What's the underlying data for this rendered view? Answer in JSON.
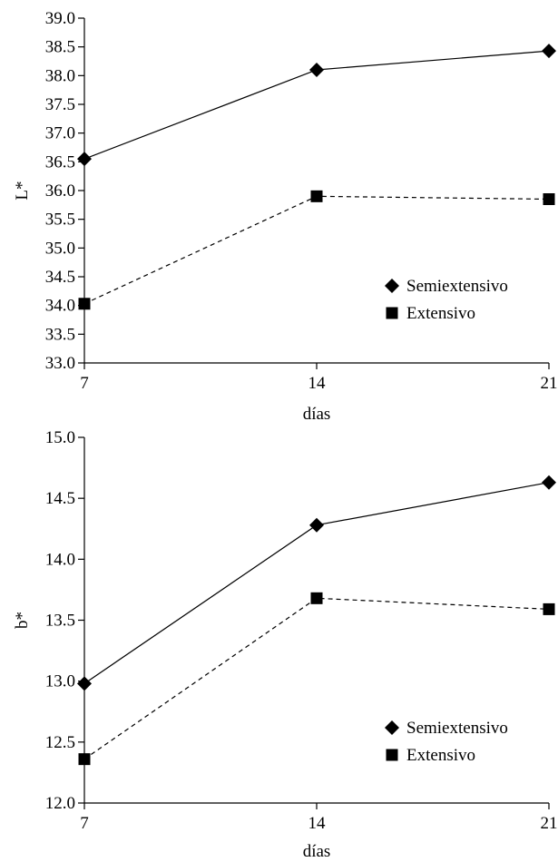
{
  "chart_data": [
    {
      "type": "line",
      "x": [
        7,
        14,
        21
      ],
      "xlabel": "días",
      "ylabel": "L*",
      "ylim": [
        33.0,
        39.0
      ],
      "ystep": 0.5,
      "yticks": [
        "33.0",
        "33.5",
        "34.0",
        "34.5",
        "35.0",
        "35.5",
        "36.0",
        "36.5",
        "37.0",
        "37.5",
        "38.0",
        "38.5",
        "39.0"
      ],
      "xticks": [
        "7",
        "14",
        "21"
      ],
      "legend_position": "lower-right",
      "grid": false,
      "series": [
        {
          "name": "Semiextensivo",
          "marker": "diamond",
          "line": "solid",
          "values": [
            36.55,
            38.1,
            38.43
          ]
        },
        {
          "name": "Extensivo",
          "marker": "square",
          "line": "dashed",
          "values": [
            34.03,
            35.9,
            35.85
          ]
        }
      ]
    },
    {
      "type": "line",
      "x": [
        7,
        14,
        21
      ],
      "xlabel": "días",
      "ylabel": "b*",
      "ylim": [
        12.0,
        15.0
      ],
      "ystep": 0.5,
      "yticks": [
        "12.0",
        "12.5",
        "13.0",
        "13.5",
        "14.0",
        "14.5",
        "15.0"
      ],
      "xticks": [
        "7",
        "14",
        "21"
      ],
      "legend_position": "lower-right",
      "grid": false,
      "series": [
        {
          "name": "Semiextensivo",
          "marker": "diamond",
          "line": "solid",
          "values": [
            12.98,
            14.28,
            14.63
          ]
        },
        {
          "name": "Extensivo",
          "marker": "square",
          "line": "dashed",
          "values": [
            12.36,
            13.68,
            13.59
          ]
        }
      ]
    }
  ],
  "colors": {
    "ink": "#000000",
    "background": "#ffffff"
  }
}
